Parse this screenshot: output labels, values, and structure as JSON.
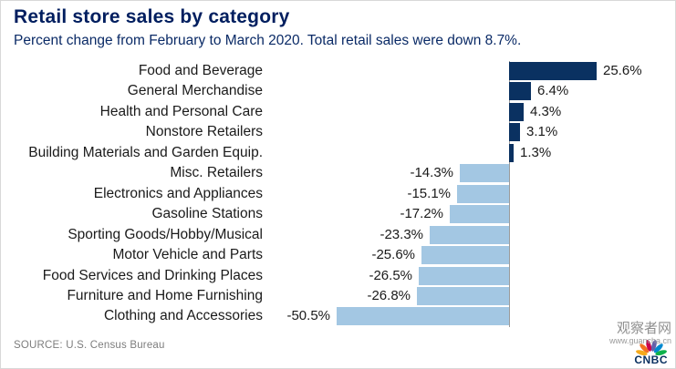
{
  "header": {
    "title": "Retail store sales by category",
    "subtitle": "Percent change from February to March 2020. Total retail sales were down 8.7%."
  },
  "chart_data": {
    "type": "bar",
    "orientation": "horizontal",
    "title": "Retail store sales by category",
    "subtitle": "Percent change from February to March 2020. Total retail sales were down 8.7%.",
    "categories": [
      "Food and Beverage",
      "General Merchandise",
      "Health and Personal Care",
      "Nonstore Retailers",
      "Building Materials and Garden Equip.",
      "Misc. Retailers",
      "Electronics and Appliances",
      "Gasoline Stations",
      "Sporting Goods/Hobby/Musical",
      "Motor Vehicle and Parts",
      "Food Services and Drinking Places",
      "Furniture and Home Furnishing",
      "Clothing and Accessories"
    ],
    "values": [
      25.6,
      6.4,
      4.3,
      3.1,
      1.3,
      -14.3,
      -15.1,
      -17.2,
      -23.3,
      -25.6,
      -26.5,
      -26.8,
      -50.5
    ],
    "labels": [
      "25.6%",
      "6.4%",
      "4.3%",
      "3.1%",
      "1.3%",
      "-14.3%",
      "-15.1%",
      "-17.2%",
      "-23.3%",
      "-25.6%",
      "-26.5%",
      "-26.8%",
      "-50.5%"
    ],
    "xlim": [
      -55,
      30
    ],
    "grid": false,
    "legend": false,
    "positive_color": "#0a3161",
    "negative_color": "#a3c7e3",
    "baseline_color": "#9b9b9b"
  },
  "footer": {
    "source": "SOURCE: U.S. Census Bureau"
  },
  "logo": {
    "text": "CNBC",
    "peacock_colors": [
      "#f5aa1c",
      "#f37021",
      "#cc004c",
      "#6460aa",
      "#0089d0",
      "#0db14b"
    ]
  },
  "watermark": {
    "name": "观察者网",
    "url": "www.guancha.cn"
  }
}
